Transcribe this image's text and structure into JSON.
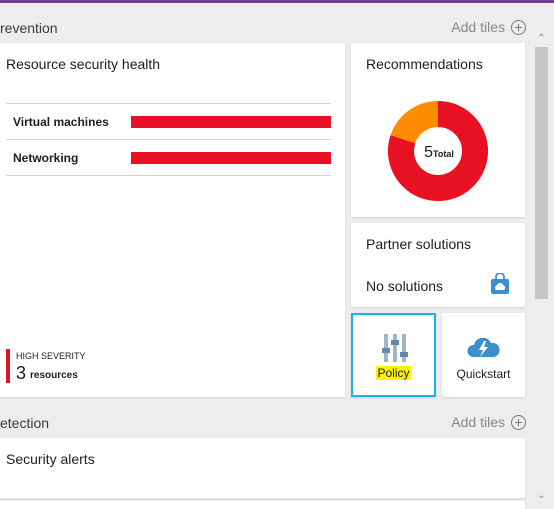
{
  "prevention": {
    "title": "revention",
    "add_tiles": "Add tiles"
  },
  "health_tile": {
    "title": "Resource security health",
    "rows": [
      {
        "label": "Virtual machines"
      },
      {
        "label": "Networking"
      }
    ],
    "severity_label": "HIGH SEVERITY",
    "severity_count": "3",
    "severity_unit": "resources"
  },
  "recommendations": {
    "title": "Recommendations",
    "total": "5",
    "total_label": "Total",
    "segments": [
      {
        "color": "#e81123",
        "fraction": 0.8
      },
      {
        "color": "#ff8c00",
        "fraction": 0.2
      }
    ]
  },
  "partner": {
    "title": "Partner solutions",
    "status": "No solutions"
  },
  "policy": {
    "label": "Policy"
  },
  "quickstart": {
    "label": "Quickstart"
  },
  "detection": {
    "title": "etection",
    "add_tiles": "Add tiles"
  },
  "alerts": {
    "title": "Security alerts"
  },
  "colors": {
    "danger": "#e81123",
    "warning": "#ff8c00",
    "accent": "#1fb0e6",
    "highlight": "#fff200"
  }
}
